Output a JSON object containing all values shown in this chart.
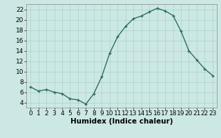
{
  "x": [
    0,
    1,
    2,
    3,
    4,
    5,
    6,
    7,
    8,
    9,
    10,
    11,
    12,
    13,
    14,
    15,
    16,
    17,
    18,
    19,
    20,
    21,
    22,
    23
  ],
  "y": [
    7,
    6.2,
    6.5,
    6,
    5.7,
    4.7,
    4.5,
    3.7,
    5.7,
    9,
    13.5,
    16.7,
    18.7,
    20.2,
    20.7,
    21.5,
    22.2,
    21.7,
    20.8,
    17.8,
    14,
    12.2,
    10.5,
    9.2
  ],
  "line_color": "#2e6b5e",
  "marker": "+",
  "background_color": "#cce8e4",
  "grid_color": "#aad0cc",
  "xlabel": "Humidex (Indice chaleur)",
  "xlim": [
    -0.5,
    23.5
  ],
  "ylim": [
    3,
    23
  ],
  "yticks": [
    4,
    6,
    8,
    10,
    12,
    14,
    16,
    18,
    20,
    22
  ],
  "xticks": [
    0,
    1,
    2,
    3,
    4,
    5,
    6,
    7,
    8,
    9,
    10,
    11,
    12,
    13,
    14,
    15,
    16,
    17,
    18,
    19,
    20,
    21,
    22,
    23
  ],
  "tick_label_fontsize": 6.5,
  "xlabel_fontsize": 7.5
}
